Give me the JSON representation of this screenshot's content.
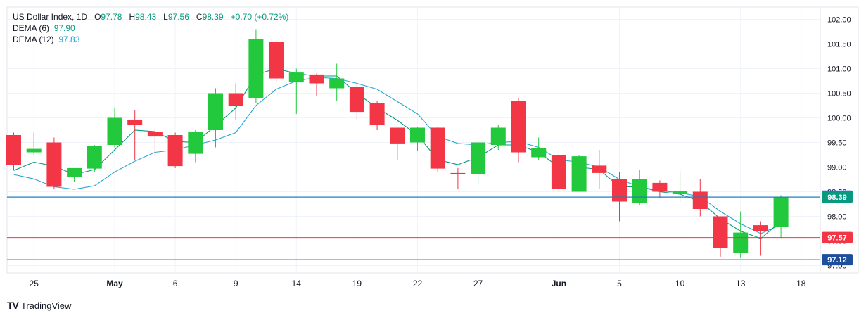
{
  "header": {
    "symbol": "US Dollar Index, 1D",
    "open_label": "O",
    "open": "97.78",
    "high_label": "H",
    "high": "98.43",
    "low_label": "L",
    "low": "97.56",
    "close_label": "C",
    "close": "98.39",
    "change": "+0.70 (+0.72%)",
    "dema6_label": "DEMA (6)",
    "dema6_value": "97.90",
    "dema12_label": "DEMA (12)",
    "dema12_value": "97.83"
  },
  "footer": {
    "brand": "TradingView",
    "logo_glyph": "TV"
  },
  "colors": {
    "up": "#22c93c",
    "down": "#f23645",
    "dema6": "#089981",
    "dema12": "#26a6d1",
    "grid": "#e0e3eb",
    "line_blue": "#2962ff",
    "line_red": "#f23645",
    "line_navy": "#1e4f9c"
  },
  "chart_data": {
    "type": "candlestick",
    "title": "US Dollar Index, 1D",
    "ylim": [
      96.85,
      102.25
    ],
    "y_ticks": [
      "102.00",
      "101.50",
      "101.00",
      "100.50",
      "100.00",
      "99.50",
      "99.00",
      "98.50",
      "98.00",
      "97.50",
      "97.00"
    ],
    "x_ticks": [
      {
        "index": 1,
        "label": "25"
      },
      {
        "index": 5,
        "label": "May"
      },
      {
        "index": 8,
        "label": "6"
      },
      {
        "index": 11,
        "label": "9"
      },
      {
        "index": 14,
        "label": "14"
      },
      {
        "index": 17,
        "label": "19"
      },
      {
        "index": 20,
        "label": "22"
      },
      {
        "index": 23,
        "label": "27"
      },
      {
        "index": 27,
        "label": "Jun"
      },
      {
        "index": 30,
        "label": "5"
      },
      {
        "index": 33,
        "label": "10"
      },
      {
        "index": 36,
        "label": "13"
      },
      {
        "index": 39,
        "label": "18"
      }
    ],
    "candles": [
      {
        "o": 99.65,
        "h": 99.7,
        "l": 98.95,
        "c": 99.05
      },
      {
        "o": 99.3,
        "h": 99.7,
        "l": 99.25,
        "c": 99.37
      },
      {
        "o": 99.5,
        "h": 99.6,
        "l": 98.55,
        "c": 98.6
      },
      {
        "o": 98.8,
        "h": 98.98,
        "l": 98.7,
        "c": 98.98
      },
      {
        "o": 98.97,
        "h": 99.45,
        "l": 98.9,
        "c": 99.43
      },
      {
        "o": 99.45,
        "h": 100.2,
        "l": 99.4,
        "c": 100.0
      },
      {
        "o": 99.95,
        "h": 100.15,
        "l": 99.15,
        "c": 99.85
      },
      {
        "o": 99.72,
        "h": 99.78,
        "l": 99.22,
        "c": 99.62
      },
      {
        "o": 99.65,
        "h": 99.7,
        "l": 98.98,
        "c": 99.02
      },
      {
        "o": 99.27,
        "h": 99.75,
        "l": 99.1,
        "c": 99.72
      },
      {
        "o": 99.75,
        "h": 100.6,
        "l": 99.4,
        "c": 100.5
      },
      {
        "o": 100.5,
        "h": 100.7,
        "l": 99.95,
        "c": 100.25
      },
      {
        "o": 100.4,
        "h": 101.8,
        "l": 100.3,
        "c": 101.6
      },
      {
        "o": 101.55,
        "h": 101.58,
        "l": 100.72,
        "c": 100.8
      },
      {
        "o": 100.72,
        "h": 101.0,
        "l": 100.08,
        "c": 100.92
      },
      {
        "o": 100.88,
        "h": 100.9,
        "l": 100.45,
        "c": 100.7
      },
      {
        "o": 100.6,
        "h": 101.1,
        "l": 100.35,
        "c": 100.8
      },
      {
        "o": 100.63,
        "h": 100.7,
        "l": 99.95,
        "c": 100.12
      },
      {
        "o": 100.3,
        "h": 100.35,
        "l": 99.75,
        "c": 99.85
      },
      {
        "o": 99.8,
        "h": 99.8,
        "l": 99.15,
        "c": 99.48
      },
      {
        "o": 99.5,
        "h": 99.82,
        "l": 99.33,
        "c": 99.8
      },
      {
        "o": 99.8,
        "h": 99.82,
        "l": 98.9,
        "c": 98.97
      },
      {
        "o": 98.88,
        "h": 98.98,
        "l": 98.55,
        "c": 98.85
      },
      {
        "o": 98.85,
        "h": 99.5,
        "l": 98.67,
        "c": 99.5
      },
      {
        "o": 99.45,
        "h": 99.85,
        "l": 99.35,
        "c": 99.8
      },
      {
        "o": 100.35,
        "h": 100.4,
        "l": 99.1,
        "c": 99.3
      },
      {
        "o": 99.2,
        "h": 99.6,
        "l": 99.15,
        "c": 99.38
      },
      {
        "o": 99.25,
        "h": 99.3,
        "l": 98.5,
        "c": 98.55
      },
      {
        "o": 98.5,
        "h": 99.25,
        "l": 98.5,
        "c": 99.22
      },
      {
        "o": 99.03,
        "h": 99.35,
        "l": 98.55,
        "c": 98.88
      },
      {
        "o": 98.75,
        "h": 98.9,
        "l": 97.9,
        "c": 98.3
      },
      {
        "o": 98.27,
        "h": 98.95,
        "l": 98.22,
        "c": 98.75
      },
      {
        "o": 98.68,
        "h": 98.73,
        "l": 98.37,
        "c": 98.5
      },
      {
        "o": 98.45,
        "h": 98.92,
        "l": 98.3,
        "c": 98.52
      },
      {
        "o": 98.5,
        "h": 98.75,
        "l": 98.0,
        "c": 98.15
      },
      {
        "o": 98.0,
        "h": 98.0,
        "l": 97.18,
        "c": 97.35
      },
      {
        "o": 97.25,
        "h": 98.1,
        "l": 97.15,
        "c": 97.67
      },
      {
        "o": 97.82,
        "h": 97.9,
        "l": 97.2,
        "c": 97.7
      },
      {
        "o": 97.78,
        "h": 98.43,
        "l": 97.56,
        "c": 98.39
      }
    ],
    "series": [
      {
        "name": "DEMA (6)",
        "values": [
          98.93,
          99.1,
          99.02,
          98.85,
          98.95,
          99.35,
          99.75,
          99.72,
          99.52,
          99.5,
          99.84,
          100.2,
          100.88,
          101.0,
          100.9,
          100.85,
          100.85,
          100.5,
          100.2,
          99.95,
          99.65,
          99.15,
          99.05,
          99.2,
          99.45,
          99.45,
          99.3,
          99.0,
          99.0,
          98.95,
          98.6,
          98.6,
          98.5,
          98.45,
          98.3,
          97.95,
          97.7,
          97.55,
          97.9
        ]
      },
      {
        "name": "DEMA (12)",
        "values": [
          98.85,
          98.76,
          98.6,
          98.55,
          98.62,
          98.9,
          99.12,
          99.3,
          99.35,
          99.45,
          99.55,
          99.7,
          100.25,
          100.58,
          100.75,
          100.82,
          100.8,
          100.7,
          100.58,
          100.33,
          100.08,
          99.62,
          99.48,
          99.45,
          99.5,
          99.52,
          99.4,
          99.15,
          99.1,
          99.0,
          98.75,
          98.6,
          98.52,
          98.48,
          98.4,
          98.1,
          97.85,
          97.65,
          97.83
        ]
      }
    ],
    "price_lines": [
      {
        "value": 98.41,
        "label": "98.41",
        "color": "#2962ff"
      },
      {
        "value": 98.39,
        "label": "98.39",
        "color": "#089981"
      },
      {
        "value": 97.57,
        "label": "97.57",
        "color": "#f23645"
      },
      {
        "value": 97.12,
        "label": "97.12",
        "color": "#1e4f9c"
      }
    ]
  }
}
